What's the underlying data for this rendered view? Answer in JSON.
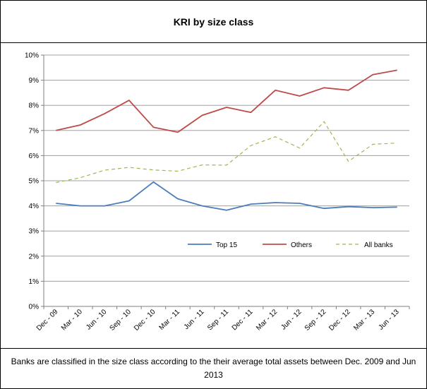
{
  "title": "KRI by size class",
  "note": "Banks are classified in the size class according to the their average total assets between Dec. 2009 and Jun 2013",
  "chart_data": {
    "type": "line",
    "title": "KRI by size class",
    "categories": [
      "Dec - 09",
      "Mar - 10",
      "Jun - 10",
      "Sep - 10",
      "Dec - 10",
      "Mar - 11",
      "Jun - 11",
      "Sep - 11",
      "Dec - 11",
      "Mar - 12",
      "Jun - 12",
      "Sep - 12",
      "Dec - 12",
      "Mar - 13",
      "Jun - 13"
    ],
    "ylim": [
      0,
      10
    ],
    "yticks": [
      0,
      1,
      2,
      3,
      4,
      5,
      6,
      7,
      8,
      9,
      10
    ],
    "ytick_labels": [
      "0%",
      "1%",
      "2%",
      "3%",
      "4%",
      "5%",
      "6%",
      "7%",
      "8%",
      "9%",
      "10%"
    ],
    "grid": true,
    "legend_position": "inside-bottom",
    "series": [
      {
        "name": "Top 15",
        "color": "#4a7ebb",
        "style": "solid",
        "values": [
          4.1,
          4.0,
          4.0,
          4.2,
          4.95,
          4.28,
          4.0,
          3.83,
          4.07,
          4.13,
          4.1,
          3.9,
          3.97,
          3.93,
          3.95
        ]
      },
      {
        "name": "Others",
        "color": "#be4b48",
        "style": "solid",
        "values": [
          7.0,
          7.22,
          7.67,
          8.2,
          7.13,
          6.93,
          7.6,
          7.92,
          7.72,
          8.6,
          8.37,
          8.7,
          8.6,
          9.22,
          9.4
        ]
      },
      {
        "name": "All banks",
        "color": "#98b954",
        "style": "dashed",
        "values": [
          4.93,
          5.12,
          5.42,
          5.53,
          5.43,
          5.38,
          5.63,
          5.62,
          6.4,
          6.75,
          6.3,
          7.35,
          5.77,
          6.45,
          6.5
        ]
      }
    ]
  }
}
